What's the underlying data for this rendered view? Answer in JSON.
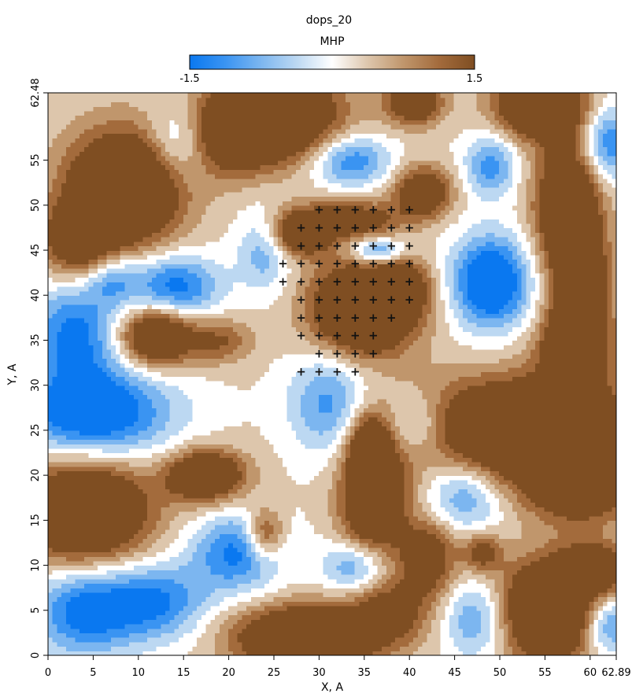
{
  "chart_data": {
    "type": "heatmap",
    "title": "dops_20",
    "colorbar": {
      "label": "MHP",
      "min_label": "-1.5",
      "max_label": "1.5",
      "min": -1.5,
      "max": 1.5,
      "colors": [
        "#0a78f0",
        "#3a94f2",
        "#7cb6f0",
        "#bcd8f2",
        "#ffffff",
        "#ddc6ac",
        "#c0966c",
        "#a36b3c",
        "#7f4e22"
      ]
    },
    "xlabel": "X, A",
    "ylabel": "Y, A",
    "xlim": [
      0,
      62.89
    ],
    "ylim": [
      0,
      62.48
    ],
    "x_ticks": [
      {
        "value": 0,
        "label": "0"
      },
      {
        "value": 5,
        "label": "5"
      },
      {
        "value": 10,
        "label": "10"
      },
      {
        "value": 15,
        "label": "15"
      },
      {
        "value": 20,
        "label": "20"
      },
      {
        "value": 25,
        "label": "25"
      },
      {
        "value": 30,
        "label": "30"
      },
      {
        "value": 35,
        "label": "35"
      },
      {
        "value": 40,
        "label": "40"
      },
      {
        "value": 45,
        "label": "45"
      },
      {
        "value": 50,
        "label": "50"
      },
      {
        "value": 55,
        "label": "55"
      },
      {
        "value": 60,
        "label": "60"
      },
      {
        "value": 62.89,
        "label": "62.89"
      }
    ],
    "y_ticks": [
      {
        "value": 0,
        "label": "0"
      },
      {
        "value": 5,
        "label": "5"
      },
      {
        "value": 10,
        "label": "10"
      },
      {
        "value": 15,
        "label": "15"
      },
      {
        "value": 20,
        "label": "20"
      },
      {
        "value": 25,
        "label": "25"
      },
      {
        "value": 30,
        "label": "30"
      },
      {
        "value": 35,
        "label": "35"
      },
      {
        "value": 40,
        "label": "40"
      },
      {
        "value": 45,
        "label": "45"
      },
      {
        "value": 50,
        "label": "50"
      },
      {
        "value": 55,
        "label": "55"
      },
      {
        "value": 62.48,
        "label": "62.48"
      }
    ],
    "field_features": [
      {
        "x": 8.5,
        "y": 52.0,
        "sx": 4.5,
        "sy": 4.5,
        "amp": 2.6
      },
      {
        "x": 3.5,
        "y": 46.0,
        "sx": 3.0,
        "sy": 3.0,
        "amp": 1.6
      },
      {
        "x": 25.0,
        "y": 60.0,
        "sx": 5.0,
        "sy": 3.5,
        "amp": 2.6
      },
      {
        "x": 20.0,
        "y": 57.5,
        "sx": 3.0,
        "sy": 3.0,
        "amp": 1.2
      },
      {
        "x": 40.5,
        "y": 61.5,
        "sx": 2.2,
        "sy": 1.8,
        "amp": 1.8
      },
      {
        "x": 54.5,
        "y": 61.0,
        "sx": 3.5,
        "sy": 2.5,
        "amp": 2.4
      },
      {
        "x": 57.5,
        "y": 50.0,
        "sx": 2.5,
        "sy": 5.0,
        "amp": 2.2
      },
      {
        "x": 59.0,
        "y": 40.0,
        "sx": 2.2,
        "sy": 5.0,
        "amp": 2.0
      },
      {
        "x": 58.0,
        "y": 34.0,
        "sx": 2.5,
        "sy": 3.0,
        "amp": 1.8
      },
      {
        "x": 28.0,
        "y": 47.0,
        "sx": 2.5,
        "sy": 1.8,
        "amp": 2.0
      },
      {
        "x": 34.0,
        "y": 48.5,
        "sx": 3.5,
        "sy": 1.5,
        "amp": 1.4
      },
      {
        "x": 41.5,
        "y": 51.5,
        "sx": 2.2,
        "sy": 2.0,
        "amp": 1.8
      },
      {
        "x": 35.0,
        "y": 38.5,
        "sx": 4.0,
        "sy": 3.5,
        "amp": 2.8
      },
      {
        "x": 39.5,
        "y": 41.0,
        "sx": 2.0,
        "sy": 2.0,
        "amp": 1.2
      },
      {
        "x": 12.0,
        "y": 35.5,
        "sx": 2.8,
        "sy": 2.3,
        "amp": 2.3
      },
      {
        "x": 19.0,
        "y": 35.0,
        "sx": 2.5,
        "sy": 1.8,
        "amp": 1.0
      },
      {
        "x": 53.0,
        "y": 25.0,
        "sx": 8.5,
        "sy": 4.0,
        "amp": 2.7
      },
      {
        "x": 59.0,
        "y": 19.0,
        "sx": 4.0,
        "sy": 3.0,
        "amp": 1.8
      },
      {
        "x": 4.0,
        "y": 16.0,
        "sx": 5.0,
        "sy": 4.0,
        "amp": 2.6
      },
      {
        "x": 17.5,
        "y": 20.0,
        "sx": 3.0,
        "sy": 2.0,
        "amp": 2.2
      },
      {
        "x": 36.0,
        "y": 17.5,
        "sx": 2.5,
        "sy": 4.5,
        "amp": 2.3
      },
      {
        "x": 35.5,
        "y": 23.5,
        "sx": 1.5,
        "sy": 2.5,
        "amp": 1.4
      },
      {
        "x": 42.0,
        "y": 11.0,
        "sx": 2.2,
        "sy": 3.0,
        "amp": 1.6
      },
      {
        "x": 24.0,
        "y": 13.5,
        "sx": 1.5,
        "sy": 2.0,
        "amp": 1.5
      },
      {
        "x": 48.0,
        "y": 11.5,
        "sx": 1.5,
        "sy": 1.5,
        "amp": 1.3
      },
      {
        "x": 55.5,
        "y": 5.0,
        "sx": 4.0,
        "sy": 4.0,
        "amp": 2.6
      },
      {
        "x": 60.5,
        "y": 9.5,
        "sx": 2.5,
        "sy": 2.0,
        "amp": 1.8
      },
      {
        "x": 28.5,
        "y": 2.0,
        "sx": 5.5,
        "sy": 2.5,
        "amp": 2.5
      },
      {
        "x": 38.0,
        "y": 5.0,
        "sx": 3.0,
        "sy": 2.5,
        "amp": 1.2
      },
      {
        "x": 4.0,
        "y": 5.0,
        "sx": 4.0,
        "sy": 3.5,
        "amp": -1.6
      },
      {
        "x": 12.0,
        "y": 6.0,
        "sx": 4.0,
        "sy": 3.0,
        "amp": -1.4
      },
      {
        "x": 5.0,
        "y": 27.0,
        "sx": 6.0,
        "sy": 3.5,
        "amp": -2.0
      },
      {
        "x": 14.0,
        "y": 41.0,
        "sx": 3.5,
        "sy": 2.5,
        "amp": -1.6
      },
      {
        "x": 3.0,
        "y": 36.0,
        "sx": 3.5,
        "sy": 4.0,
        "amp": -1.5
      },
      {
        "x": 49.0,
        "y": 41.5,
        "sx": 3.0,
        "sy": 3.5,
        "amp": -2.2
      },
      {
        "x": 36.5,
        "y": 45.0,
        "sx": 2.0,
        "sy": 1.0,
        "amp": -1.4
      },
      {
        "x": 33.5,
        "y": 55.0,
        "sx": 3.0,
        "sy": 2.0,
        "amp": -1.4
      },
      {
        "x": 49.0,
        "y": 54.5,
        "sx": 2.0,
        "sy": 2.5,
        "amp": -1.2
      },
      {
        "x": 14.5,
        "y": 57.0,
        "sx": 2.5,
        "sy": 3.0,
        "amp": -1.0
      },
      {
        "x": 31.0,
        "y": 28.0,
        "sx": 3.0,
        "sy": 4.0,
        "amp": -1.2
      },
      {
        "x": 21.0,
        "y": 11.5,
        "sx": 3.5,
        "sy": 3.0,
        "amp": -1.5
      },
      {
        "x": 41.0,
        "y": 25.5,
        "sx": 2.5,
        "sy": 2.5,
        "amp": -1.0
      },
      {
        "x": 46.0,
        "y": 18.0,
        "sx": 3.0,
        "sy": 3.0,
        "amp": -1.2
      },
      {
        "x": 47.5,
        "y": 4.0,
        "sx": 2.5,
        "sy": 3.0,
        "amp": -1.2
      },
      {
        "x": 62.0,
        "y": 3.5,
        "sx": 2.0,
        "sy": 2.5,
        "amp": -1.5
      },
      {
        "x": 62.0,
        "y": 57.0,
        "sx": 2.0,
        "sy": 3.0,
        "amp": -1.4
      },
      {
        "x": 34.0,
        "y": 10.0,
        "sx": 2.5,
        "sy": 2.0,
        "amp": -1.2
      },
      {
        "x": 7.0,
        "y": 42.0,
        "sx": 2.0,
        "sy": 2.0,
        "amp": -1.0
      },
      {
        "x": 24.0,
        "y": 45.0,
        "sx": 2.0,
        "sy": 3.0,
        "amp": -1.0
      }
    ],
    "markers": {
      "symbol": "+",
      "points": [
        [
          30,
          49.5
        ],
        [
          32,
          49.5
        ],
        [
          34,
          49.5
        ],
        [
          36,
          49.5
        ],
        [
          38,
          49.5
        ],
        [
          40,
          49.5
        ],
        [
          28,
          47.5
        ],
        [
          30,
          47.5
        ],
        [
          32,
          47.5
        ],
        [
          34,
          47.5
        ],
        [
          36,
          47.5
        ],
        [
          38,
          47.5
        ],
        [
          40,
          47.5
        ],
        [
          28,
          45.5
        ],
        [
          30,
          45.5
        ],
        [
          32,
          45.5
        ],
        [
          34,
          45.5
        ],
        [
          36,
          45.5
        ],
        [
          38,
          45.5
        ],
        [
          40,
          45.5
        ],
        [
          26,
          43.5
        ],
        [
          28,
          43.5
        ],
        [
          30,
          43.5
        ],
        [
          32,
          43.5
        ],
        [
          34,
          43.5
        ],
        [
          36,
          43.5
        ],
        [
          38,
          43.5
        ],
        [
          40,
          43.5
        ],
        [
          26,
          41.5
        ],
        [
          28,
          41.5
        ],
        [
          30,
          41.5
        ],
        [
          32,
          41.5
        ],
        [
          34,
          41.5
        ],
        [
          36,
          41.5
        ],
        [
          38,
          41.5
        ],
        [
          40,
          41.5
        ],
        [
          28,
          39.5
        ],
        [
          30,
          39.5
        ],
        [
          32,
          39.5
        ],
        [
          34,
          39.5
        ],
        [
          36,
          39.5
        ],
        [
          38,
          39.5
        ],
        [
          40,
          39.5
        ],
        [
          28,
          37.5
        ],
        [
          30,
          37.5
        ],
        [
          32,
          37.5
        ],
        [
          34,
          37.5
        ],
        [
          36,
          37.5
        ],
        [
          38,
          37.5
        ],
        [
          28,
          35.5
        ],
        [
          30,
          35.5
        ],
        [
          32,
          35.5
        ],
        [
          34,
          35.5
        ],
        [
          36,
          35.5
        ],
        [
          30,
          33.5
        ],
        [
          32,
          33.5
        ],
        [
          34,
          33.5
        ],
        [
          36,
          33.5
        ],
        [
          28,
          31.5
        ],
        [
          30,
          31.5
        ],
        [
          32,
          31.5
        ],
        [
          34,
          31.5
        ]
      ]
    }
  }
}
